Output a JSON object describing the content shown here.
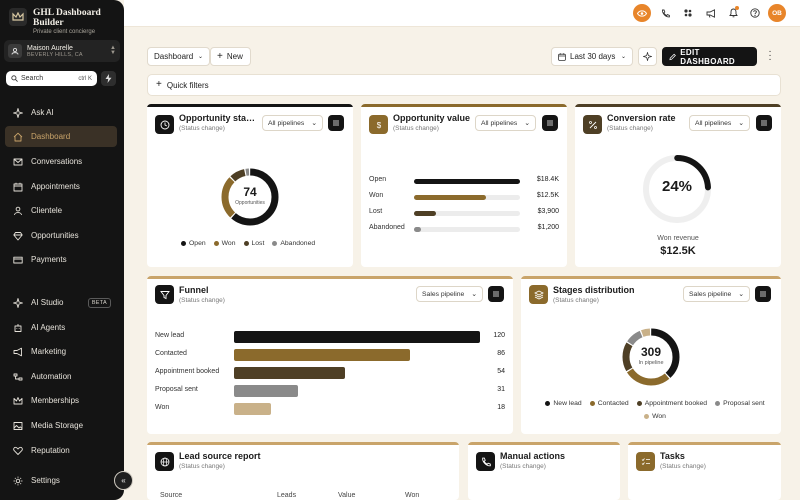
{
  "sidebar": {
    "brand_title": "GHL Dashboard Builder",
    "brand_subtitle": "Private client concierge",
    "account_name": "Maison Aurelle",
    "account_location": "BEVERLY HILLS, CA",
    "search_placeholder": "Search",
    "search_shortcut": "ctrl K",
    "nav": [
      {
        "label": "Ask AI",
        "icon": "sparkles-icon"
      },
      {
        "label": "Dashboard",
        "icon": "home-icon",
        "active": true
      },
      {
        "label": "Conversations",
        "icon": "mail-icon"
      },
      {
        "label": "Appointments",
        "icon": "calendar-icon"
      },
      {
        "label": "Clientele",
        "icon": "user-icon"
      },
      {
        "label": "Opportunities",
        "icon": "diamond-icon"
      },
      {
        "label": "Payments",
        "icon": "card-icon"
      },
      {
        "label": "AI Studio",
        "icon": "sparkles-icon",
        "badge": "BETA"
      },
      {
        "label": "AI Agents",
        "icon": "bot-icon"
      },
      {
        "label": "Marketing",
        "icon": "megaphone-icon"
      },
      {
        "label": "Automation",
        "icon": "workflow-icon"
      },
      {
        "label": "Memberships",
        "icon": "crown-icon"
      },
      {
        "label": "Media Storage",
        "icon": "image-icon"
      },
      {
        "label": "Reputation",
        "icon": "heart-icon"
      },
      {
        "label": "Settings",
        "icon": "gear-icon"
      }
    ]
  },
  "topbar": {
    "avatar_initials": "OB",
    "accent": "#e8852a"
  },
  "toolbar": {
    "dashboard_label": "Dashboard",
    "new_label": "New",
    "date_range": "Last 30 days",
    "edit_label": "EDIT DASHBOARD",
    "quick_filters": "Quick filters"
  },
  "cards": {
    "opp_status": {
      "title": "Opportunity status",
      "subtitle": "(Status change)",
      "filter": "All pipelines",
      "total": "74",
      "total_label": "Opportunities",
      "legend": [
        "Open",
        "Won",
        "Lost",
        "Abandoned"
      ]
    },
    "opp_value": {
      "title": "Opportunity value",
      "subtitle": "(Status change)",
      "filter": "All pipelines",
      "rows": [
        {
          "label": "Open",
          "value": "$18.4K",
          "amount": 18400
        },
        {
          "label": "Won",
          "value": "$12.5K",
          "amount": 12500
        },
        {
          "label": "Lost",
          "value": "$3,900",
          "amount": 3900
        },
        {
          "label": "Abandoned",
          "value": "$1,200",
          "amount": 1200
        }
      ]
    },
    "conversion": {
      "title": "Conversion rate",
      "subtitle": "(Status change)",
      "filter": "All pipelines",
      "rate": "24%",
      "rate_fraction": 0.24,
      "won_label": "Won revenue",
      "won_value": "$12.5K"
    },
    "funnel": {
      "title": "Funnel",
      "subtitle": "(Status change)",
      "filter": "Sales pipeline",
      "rows": [
        {
          "label": "New lead",
          "value": "120",
          "count": 120
        },
        {
          "label": "Contacted",
          "value": "86",
          "count": 86
        },
        {
          "label": "Appointment booked",
          "value": "54",
          "count": 54
        },
        {
          "label": "Proposal sent",
          "value": "31",
          "count": 31
        },
        {
          "label": "Won",
          "value": "18",
          "count": 18
        }
      ]
    },
    "stages": {
      "title": "Stages distribution",
      "subtitle": "(Status change)",
      "filter": "Sales pipeline",
      "total": "309",
      "total_label": "In pipeline",
      "legend": [
        "New lead",
        "Contacted",
        "Appointment booked",
        "Proposal sent",
        "Won"
      ]
    },
    "lead_source": {
      "title": "Lead source report",
      "subtitle": "(Status change)",
      "columns": [
        "Source",
        "Leads",
        "Value",
        "Won"
      ]
    },
    "manual_actions": {
      "title": "Manual actions",
      "subtitle": "(Status change)"
    },
    "tasks": {
      "title": "Tasks",
      "subtitle": "(Status change)"
    }
  },
  "colors": {
    "black": "#141414",
    "gold": "#8b6a2c",
    "brown": "#4e3f25",
    "grey": "#8a8a8a",
    "sand": "#c9b189",
    "gold_light": "#a7915f",
    "card_accent": "#c9a46a"
  },
  "chart_data": [
    {
      "type": "pie",
      "title": "Opportunity status",
      "categories": [
        "Open",
        "Won",
        "Lost",
        "Abandoned"
      ],
      "values": [
        46,
        19,
        7,
        2
      ]
    },
    {
      "type": "bar",
      "title": "Opportunity value",
      "categories": [
        "Open",
        "Won",
        "Lost",
        "Abandoned"
      ],
      "values": [
        18400,
        12500,
        3900,
        1200
      ]
    },
    {
      "type": "bar",
      "title": "Funnel",
      "categories": [
        "New lead",
        "Contacted",
        "Appointment booked",
        "Proposal sent",
        "Won"
      ],
      "values": [
        120,
        86,
        54,
        31,
        18
      ]
    },
    {
      "type": "pie",
      "title": "Stages distribution",
      "categories": [
        "New lead",
        "Contacted",
        "Appointment booked",
        "Proposal sent",
        "Won"
      ],
      "values": [
        120,
        86,
        54,
        31,
        18
      ]
    }
  ]
}
